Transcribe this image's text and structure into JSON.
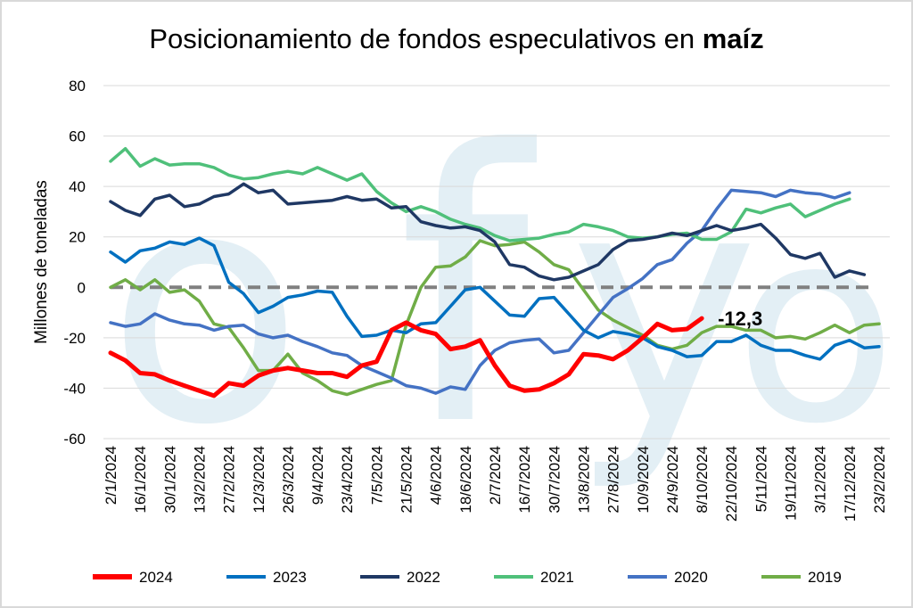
{
  "chart_data": {
    "type": "line",
    "title": "Posicionamiento de fondos especulativos en",
    "title_bold": "maíz",
    "ylabel": "Millones de toneladas",
    "xlabel": "",
    "ylim": [
      -60,
      80
    ],
    "yticks": [
      -60,
      -40,
      -20,
      0,
      20,
      40,
      60,
      80
    ],
    "grid": "horizontal",
    "legend_position": "bottom",
    "x_tick_labels": [
      "2/1/2024",
      "16/1/2024",
      "30/1/2024",
      "13/2/2024",
      "27/2/2024",
      "12/3/2024",
      "26/3/2024",
      "9/4/2024",
      "23/4/2024",
      "7/5/2024",
      "21/5/2024",
      "4/6/2024",
      "18/6/2024",
      "2/7/2024",
      "16/7/2024",
      "30/7/2024",
      "13/8/2024",
      "27/8/2024",
      "10/9/2024",
      "24/9/2024",
      "8/10/2024",
      "22/10/2024",
      "5/11/2024",
      "19/11/2024",
      "3/12/2024",
      "17/12/2024",
      "23/2/2024"
    ],
    "annotation": {
      "text": "-12,3",
      "series": "2024"
    },
    "watermark": "ofyo",
    "colors": {
      "2024": "#ff0000",
      "2023": "#0070c0",
      "2022": "#1f3864",
      "2021": "#4fc07a",
      "2020": "#4472c4",
      "2019": "#70ad47",
      "zero_line": "#808080",
      "watermark": "#e3eff5"
    },
    "series": [
      {
        "name": "2024",
        "values": [
          -26,
          -29,
          -34,
          -34.5,
          -37,
          -39,
          -41,
          -43,
          -38,
          -39,
          -35,
          -33,
          -32,
          -33,
          -34,
          -34,
          -35.5,
          -31,
          -29.5,
          -17,
          -14,
          -17,
          -18.5,
          -24.5,
          -23.5,
          -21,
          -31,
          -39,
          -41,
          -40.5,
          -38,
          -34.5,
          -26.5,
          -27,
          -28.5,
          -25,
          -20,
          -14.5,
          -17,
          -16.5,
          -12.3
        ]
      },
      {
        "name": "2023",
        "values": [
          14,
          10,
          14.5,
          15.5,
          18,
          17,
          19.5,
          16.5,
          2,
          -2.5,
          -10,
          -7.5,
          -4,
          -3,
          -1.5,
          -2,
          -11.5,
          -19.5,
          -19,
          -17,
          -18,
          -14.5,
          -14,
          -7.5,
          -1,
          0,
          -5.5,
          -11,
          -11.5,
          -4.5,
          -4,
          -10.5,
          -17,
          -20,
          -17.5,
          -18.5,
          -20,
          -23.5,
          -25,
          -27.5,
          -27,
          -21.5,
          -21.5,
          -19,
          -23,
          -25,
          -25,
          -27,
          -28.5,
          -23,
          -21,
          -24,
          -23.5
        ]
      },
      {
        "name": "2022",
        "values": [
          34,
          30.5,
          28.5,
          35,
          36.5,
          32,
          33,
          36,
          37,
          41,
          37.5,
          38.5,
          33,
          33.5,
          34,
          34.5,
          36,
          34.5,
          35,
          31.5,
          32,
          26,
          24.5,
          23.5,
          24,
          22.5,
          18,
          9,
          8,
          4.5,
          3,
          4,
          6.5,
          9,
          15,
          18.5,
          19,
          20,
          21.5,
          20.5,
          22.5,
          24.5,
          22.5,
          23.5,
          25,
          19.5,
          13,
          11.5,
          13.5,
          4,
          6.5,
          5
        ]
      },
      {
        "name": "2021",
        "values": [
          50,
          55,
          48,
          51,
          48.5,
          49,
          49,
          47.5,
          44.5,
          43,
          43.5,
          45,
          46,
          45,
          47.5,
          45,
          42.5,
          45,
          38,
          33.5,
          30,
          32,
          30,
          27,
          25,
          23.5,
          20.5,
          18.5,
          19,
          19.5,
          21,
          22,
          25,
          24,
          22.5,
          20,
          19.5,
          20,
          21,
          21.5,
          19,
          19,
          22,
          31,
          29.5,
          31.5,
          33,
          28,
          30.5,
          33,
          35
        ]
      },
      {
        "name": "2020",
        "values": [
          -14,
          -15.5,
          -14.5,
          -10.5,
          -13,
          -14.5,
          -15,
          -17,
          -15.5,
          -15,
          -18.5,
          -20,
          -19,
          -21.5,
          -23.5,
          -26,
          -27,
          -31,
          -33.5,
          -36,
          -39,
          -40,
          -42,
          -39.5,
          -40.5,
          -31,
          -25,
          -22,
          -21,
          -20.5,
          -26,
          -25,
          -18,
          -11,
          -4,
          -0.5,
          3.5,
          9,
          11,
          17.5,
          22.5,
          31,
          38.5,
          38,
          37.5,
          36,
          38.5,
          37.5,
          37,
          35.5,
          37.5
        ]
      },
      {
        "name": "2019",
        "values": [
          0,
          3,
          -1,
          3,
          -2,
          -1,
          -5.5,
          -14.5,
          -16,
          -24,
          -33,
          -33,
          -26.5,
          -34,
          -37,
          -41,
          -42.5,
          -40.5,
          -38.5,
          -37,
          -15,
          0,
          8,
          8.5,
          12,
          18.5,
          16.5,
          17,
          18,
          14,
          9,
          7,
          -1,
          -9,
          -13,
          -16,
          -19,
          -23,
          -24.5,
          -23,
          -18,
          -15.5,
          -15.5,
          -17,
          -17,
          -20,
          -19.5,
          -20.5,
          -18,
          -15,
          -18,
          -15,
          -14.5
        ]
      }
    ],
    "legend": [
      "2024",
      "2023",
      "2022",
      "2021",
      "2020",
      "2019"
    ]
  }
}
